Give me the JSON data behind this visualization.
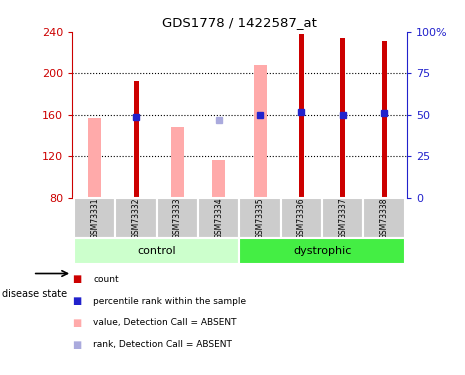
{
  "title": "GDS1778 / 1422587_at",
  "samples": [
    "GSM73331",
    "GSM73332",
    "GSM73333",
    "GSM73334",
    "GSM73335",
    "GSM73336",
    "GSM73337",
    "GSM73338"
  ],
  "red_bars": [
    null,
    193,
    null,
    null,
    null,
    238,
    234,
    231
  ],
  "pink_bars": [
    157,
    null,
    148,
    117,
    208,
    null,
    null,
    null
  ],
  "blue_dots": [
    null,
    158,
    null,
    null,
    160,
    163,
    160,
    162
  ],
  "lavender_dots": [
    null,
    null,
    null,
    155,
    null,
    null,
    null,
    null
  ],
  "ylim": [
    80,
    240
  ],
  "yticks_left": [
    80,
    120,
    160,
    200,
    240
  ],
  "yticks_right": [
    0,
    25,
    50,
    75,
    100
  ],
  "right_ytick_positions": [
    80,
    120,
    160,
    200,
    240
  ],
  "control_group_label": "control",
  "dystrophic_group_label": "dystrophic",
  "disease_state_label": "disease state",
  "red_color": "#cc0000",
  "pink_color": "#ffaaaa",
  "blue_color": "#2222cc",
  "lavender_color": "#aaaadd",
  "control_bg": "#ccffcc",
  "dystrophic_bg": "#44ee44",
  "sample_label_bg": "#cccccc",
  "pink_bar_width": 0.32,
  "red_bar_width": 0.12,
  "legend_labels": [
    "count",
    "percentile rank within the sample",
    "value, Detection Call = ABSENT",
    "rank, Detection Call = ABSENT"
  ]
}
